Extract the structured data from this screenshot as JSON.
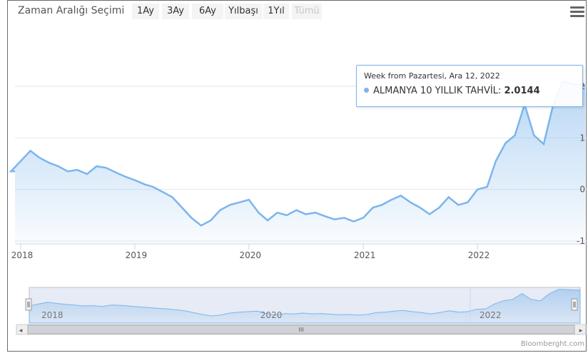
{
  "range_selector": {
    "title": "Zaman Aralığı Seçimi",
    "buttons": [
      {
        "label": "1Ay",
        "enabled": true
      },
      {
        "label": "3Ay",
        "enabled": true
      },
      {
        "label": "6Ay",
        "enabled": true
      },
      {
        "label": "Yılbaşı",
        "enabled": true
      },
      {
        "label": "1Yıl",
        "enabled": true
      },
      {
        "label": "Tümü",
        "enabled": false
      }
    ]
  },
  "menu_icon": "hamburger-menu-icon",
  "tooltip": {
    "header": "Week from Pazartesi, Ara 12, 2022",
    "series_label": "ALMANYA 10 YILLIK TAHVİL:",
    "value": "2.0144"
  },
  "navigator": {
    "labels": [
      "2018",
      "2020",
      "2022"
    ],
    "scrollbar_grip": "III"
  },
  "credits": "Bloomberght.com",
  "colors": {
    "series": "#7cb5ec",
    "grid": "#e6e6e6",
    "tooltip_border": "#7cb5ec"
  },
  "chart_data": {
    "type": "area",
    "series": [
      {
        "name": "ALMANYA 10 YILLIK TAHVİL"
      }
    ],
    "x_tick_labels": [
      "2018",
      "2019",
      "2020",
      "2021",
      "2022"
    ],
    "y_tick_labels": [
      "2",
      "1",
      "0",
      "-1"
    ],
    "ylim": [
      -1,
      2
    ],
    "x": [
      "2017-12-01",
      "2018-01-01",
      "2018-02-01",
      "2018-03-01",
      "2018-04-01",
      "2018-05-01",
      "2018-06-01",
      "2018-07-01",
      "2018-08-01",
      "2018-09-01",
      "2018-10-01",
      "2018-11-01",
      "2018-12-01",
      "2019-01-01",
      "2019-02-01",
      "2019-03-01",
      "2019-04-01",
      "2019-05-01",
      "2019-06-01",
      "2019-07-01",
      "2019-08-01",
      "2019-09-01",
      "2019-10-01",
      "2019-11-01",
      "2019-12-01",
      "2020-01-01",
      "2020-02-01",
      "2020-03-01",
      "2020-04-01",
      "2020-05-01",
      "2020-06-01",
      "2020-07-01",
      "2020-08-01",
      "2020-09-01",
      "2020-10-01",
      "2020-11-01",
      "2020-12-01",
      "2021-01-01",
      "2021-02-01",
      "2021-03-01",
      "2021-04-01",
      "2021-05-01",
      "2021-06-01",
      "2021-07-01",
      "2021-08-01",
      "2021-09-01",
      "2021-10-01",
      "2021-11-01",
      "2021-12-01",
      "2022-01-01",
      "2022-02-01",
      "2022-03-01",
      "2022-04-01",
      "2022-05-01",
      "2022-06-01",
      "2022-07-01",
      "2022-08-01",
      "2022-09-01",
      "2022-10-01",
      "2022-11-01",
      "2022-12-12"
    ],
    "values": [
      0.35,
      0.55,
      0.75,
      0.62,
      0.52,
      0.45,
      0.35,
      0.38,
      0.3,
      0.45,
      0.42,
      0.33,
      0.25,
      0.18,
      0.1,
      0.05,
      -0.05,
      -0.15,
      -0.35,
      -0.55,
      -0.7,
      -0.6,
      -0.4,
      -0.3,
      -0.25,
      -0.2,
      -0.45,
      -0.6,
      -0.45,
      -0.5,
      -0.4,
      -0.48,
      -0.45,
      -0.52,
      -0.58,
      -0.55,
      -0.62,
      -0.55,
      -0.35,
      -0.3,
      -0.2,
      -0.12,
      -0.25,
      -0.35,
      -0.48,
      -0.35,
      -0.15,
      -0.3,
      -0.25,
      0.0,
      0.05,
      0.55,
      0.9,
      1.05,
      1.65,
      1.05,
      0.88,
      1.65,
      2.1,
      2.05,
      2.01
    ]
  }
}
